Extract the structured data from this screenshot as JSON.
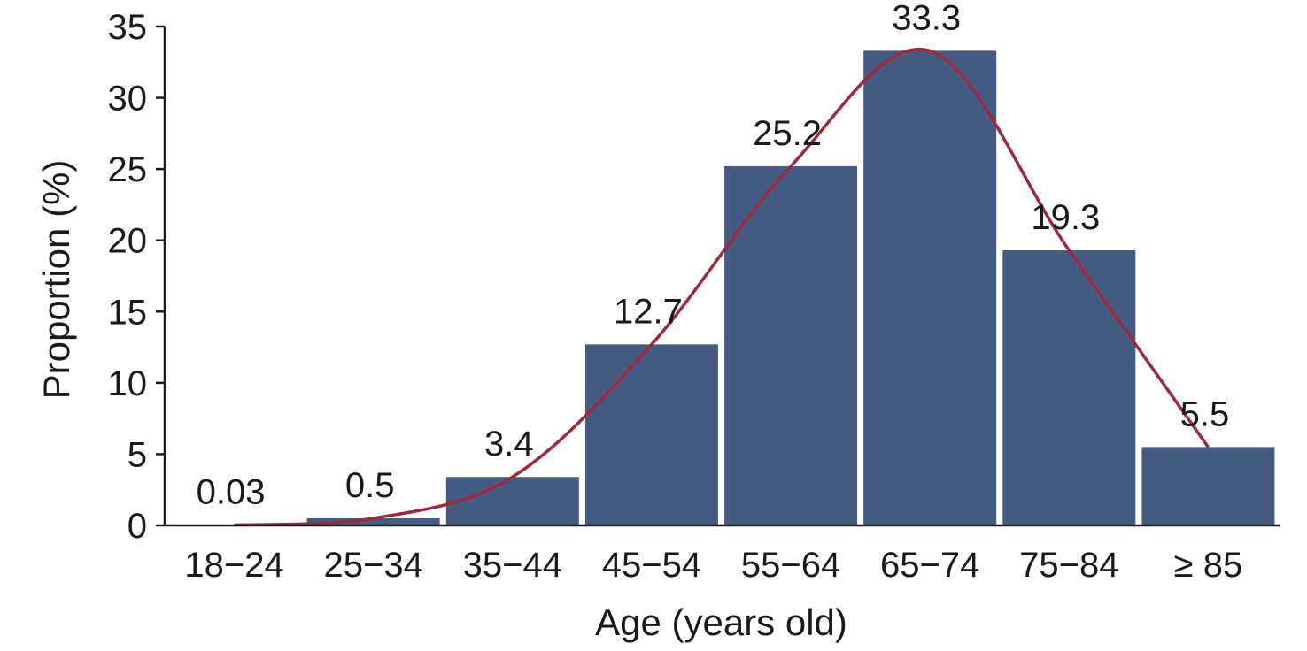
{
  "chart_data": {
    "type": "bar",
    "xlabel": "Age (years old)",
    "ylabel": "Proportion (%)",
    "categories": [
      "18−24",
      "25−34",
      "35−44",
      "45−54",
      "55−64",
      "65−74",
      "75−84",
      "≥ 85"
    ],
    "values": [
      0.03,
      0.5,
      3.4,
      12.7,
      25.2,
      33.3,
      19.3,
      5.5
    ],
    "data_labels": [
      "0.03",
      "0.5",
      "3.4",
      "12.7",
      "25.2",
      "33.3",
      "19.3",
      "5.5"
    ],
    "yticks": [
      "0",
      "5",
      "10",
      "15",
      "20",
      "25",
      "30",
      "35"
    ],
    "ylim": [
      0,
      35
    ],
    "grid": false,
    "legend": "none",
    "has_trend_curve": true,
    "colors": {
      "bar": "#455b84",
      "curve": "#9b2a3b",
      "axis": "#1a1a1a"
    }
  }
}
